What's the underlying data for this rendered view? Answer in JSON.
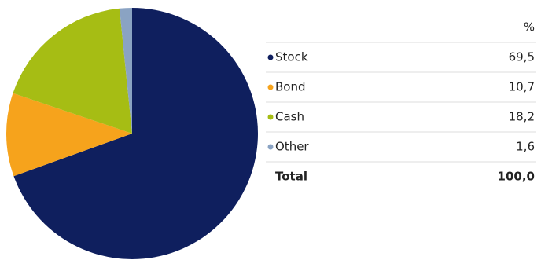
{
  "chart_data": {
    "type": "pie",
    "categories": [
      "Stock",
      "Bond",
      "Cash",
      "Other"
    ],
    "values": [
      69.5,
      10.7,
      18.2,
      1.6
    ],
    "value_labels": [
      "69,5",
      "10,7",
      "18,2",
      "1,6"
    ],
    "colors": [
      "#0f1f5e",
      "#f6a31c",
      "#a6bd14",
      "#8aa3c3"
    ],
    "value_header": "%",
    "total": {
      "label": "Total",
      "value_label": "100,0"
    }
  }
}
